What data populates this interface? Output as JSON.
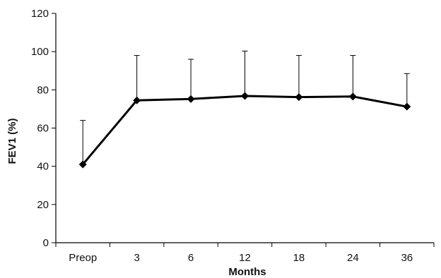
{
  "chart_data": {
    "type": "line",
    "title": "",
    "xlabel": "Months",
    "ylabel": "FEV1 (%)",
    "categories": [
      "Preop",
      "3",
      "6",
      "12",
      "18",
      "24",
      "36"
    ],
    "values": [
      41,
      74.5,
      75.2,
      76.8,
      76.2,
      76.5,
      71.2
    ],
    "error_upper": [
      64,
      98,
      96,
      100.3,
      98,
      98,
      88.5
    ],
    "ylim": [
      0,
      120
    ],
    "yticks": [
      0,
      20,
      40,
      60,
      80,
      100,
      120
    ],
    "grid": false,
    "legend": "none",
    "marker": "diamond",
    "line_color": "#000000"
  }
}
